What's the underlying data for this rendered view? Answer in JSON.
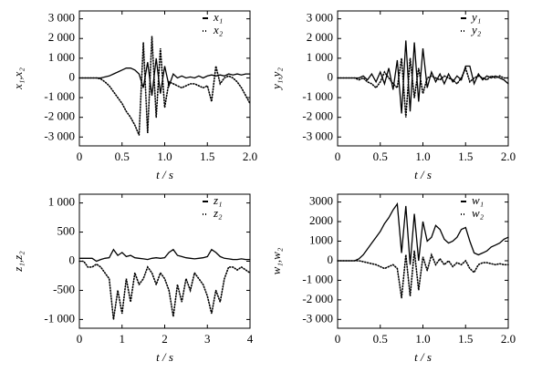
{
  "chart_data": [
    {
      "type": "line",
      "x_label": "t / s",
      "y_label": "x₁,x₂",
      "x": [
        0,
        0.05,
        0.1,
        0.15,
        0.2,
        0.25,
        0.3,
        0.35,
        0.4,
        0.45,
        0.5,
        0.55,
        0.6,
        0.65,
        0.7,
        0.75,
        0.8,
        0.85,
        0.9,
        0.95,
        1.0,
        1.05,
        1.1,
        1.15,
        1.2,
        1.25,
        1.3,
        1.35,
        1.4,
        1.45,
        1.5,
        1.55,
        1.6,
        1.65,
        1.7,
        1.75,
        1.8,
        1.85,
        1.9,
        1.95,
        2.0
      ],
      "series": [
        {
          "name": "x₁",
          "color": "#000000",
          "style": "solid",
          "values": [
            0,
            0,
            0,
            0,
            0,
            0,
            50,
            100,
            200,
            300,
            400,
            500,
            500,
            400,
            200,
            -500,
            800,
            -900,
            1000,
            -800,
            600,
            -400,
            200,
            0,
            100,
            0,
            50,
            0,
            100,
            0,
            100,
            150,
            100,
            150,
            100,
            200,
            150,
            200,
            150,
            200,
            200
          ]
        },
        {
          "name": "x₂",
          "color": "#000000",
          "style": "dotted",
          "values": [
            0,
            0,
            0,
            0,
            0,
            -50,
            -200,
            -400,
            -700,
            -1000,
            -1300,
            -1700,
            -2000,
            -2400,
            -2900,
            1800,
            -2800,
            2100,
            -2000,
            1500,
            -1500,
            -200,
            -300,
            -400,
            -500,
            -400,
            -300,
            -300,
            -400,
            -500,
            -400,
            -1200,
            600,
            -300,
            0,
            100,
            0,
            -200,
            -500,
            -900,
            -1300
          ]
        }
      ],
      "xlim": [
        0,
        2
      ],
      "xticks": [
        0,
        0.5,
        {
          "value": 1,
          "label": "1.0"
        },
        1.5,
        {
          "value": 2,
          "label": "2.0"
        }
      ],
      "ylim": [
        -3450,
        3400
      ],
      "yticks": [
        {
          "value": 3000,
          "label": "3 000"
        },
        {
          "value": 2000,
          "label": "2 000"
        },
        {
          "value": 1000,
          "label": "1 000"
        },
        0,
        {
          "value": -1000,
          "label": "-1 000"
        },
        {
          "value": -2000,
          "label": "-2 000"
        },
        {
          "value": -3000,
          "label": "-3 000"
        }
      ]
    },
    {
      "type": "line",
      "x_label": "t / s",
      "y_label": "y₁,y₂",
      "x": [
        0,
        0.05,
        0.1,
        0.15,
        0.2,
        0.25,
        0.3,
        0.35,
        0.4,
        0.45,
        0.5,
        0.55,
        0.6,
        0.65,
        0.7,
        0.75,
        0.8,
        0.85,
        0.9,
        0.95,
        1.0,
        1.05,
        1.1,
        1.15,
        1.2,
        1.25,
        1.3,
        1.35,
        1.4,
        1.45,
        1.5,
        1.55,
        1.6,
        1.65,
        1.7,
        1.75,
        1.8,
        1.85,
        1.9,
        1.95,
        2.0
      ],
      "series": [
        {
          "name": "y₁",
          "color": "#000000",
          "style": "solid",
          "values": [
            0,
            0,
            0,
            0,
            0,
            0,
            100,
            -100,
            200,
            -200,
            300,
            -300,
            500,
            -600,
            900,
            -1800,
            1900,
            -1700,
            1800,
            -1200,
            1500,
            -500,
            300,
            -200,
            200,
            -300,
            200,
            -200,
            100,
            -100,
            600,
            600,
            -300,
            200,
            -100,
            100,
            0,
            100,
            0,
            -100,
            -300
          ]
        },
        {
          "name": "y₂",
          "color": "#000000",
          "style": "dotted",
          "values": [
            0,
            0,
            0,
            0,
            0,
            -100,
            0,
            -200,
            -300,
            -500,
            -200,
            300,
            0,
            -300,
            -500,
            1000,
            -2000,
            1000,
            -1000,
            500,
            -800,
            0,
            100,
            0,
            -100,
            100,
            0,
            -100,
            -300,
            0,
            500,
            -200,
            0,
            100,
            0,
            -100,
            100,
            0,
            100,
            0,
            0
          ]
        }
      ],
      "xlim": [
        0,
        2
      ],
      "xticks": [
        0,
        0.5,
        {
          "value": 1,
          "label": "1.0"
        },
        1.5,
        {
          "value": 2,
          "label": "2.0"
        }
      ],
      "ylim": [
        -3450,
        3400
      ],
      "yticks": [
        {
          "value": 3000,
          "label": "3 000"
        },
        {
          "value": 2000,
          "label": "2 000"
        },
        {
          "value": 1000,
          "label": "1 000"
        },
        0,
        {
          "value": -1000,
          "label": "-1 000"
        },
        {
          "value": -2000,
          "label": "-2 000"
        },
        {
          "value": -3000,
          "label": "-3 000"
        }
      ]
    },
    {
      "type": "line",
      "x_label": "t / s",
      "y_label": "z₁,z₂",
      "x": [
        0,
        0.1,
        0.2,
        0.3,
        0.4,
        0.5,
        0.6,
        0.7,
        0.8,
        0.9,
        1,
        1.1,
        1.2,
        1.3,
        1.4,
        1.5,
        1.6,
        1.7,
        1.8,
        1.9,
        2,
        2.1,
        2.2,
        2.3,
        2.4,
        2.5,
        2.6,
        2.7,
        2.8,
        2.9,
        3,
        3.1,
        3.2,
        3.3,
        3.4,
        3.5,
        3.6,
        3.7,
        3.8,
        3.9,
        4
      ],
      "series": [
        {
          "name": "z₁",
          "color": "#000000",
          "style": "solid",
          "values": [
            50,
            50,
            50,
            50,
            0,
            30,
            50,
            60,
            200,
            100,
            150,
            80,
            100,
            60,
            50,
            40,
            30,
            50,
            60,
            50,
            60,
            150,
            200,
            100,
            80,
            60,
            50,
            40,
            50,
            60,
            80,
            200,
            150,
            80,
            50,
            40,
            30,
            30,
            40,
            30,
            30
          ]
        },
        {
          "name": "z₂",
          "color": "#000000",
          "style": "dotted",
          "values": [
            0,
            0,
            -100,
            -100,
            -50,
            -100,
            -200,
            -300,
            -1000,
            -500,
            -900,
            -300,
            -700,
            -200,
            -400,
            -300,
            -100,
            -200,
            -400,
            -200,
            -300,
            -500,
            -950,
            -400,
            -700,
            -300,
            -500,
            -200,
            -300,
            -400,
            -600,
            -900,
            -500,
            -700,
            -300,
            -100,
            -100,
            -150,
            -100,
            -150,
            -200
          ]
        }
      ],
      "xlim": [
        0,
        4
      ],
      "xticks": [
        0,
        1,
        2,
        3,
        4
      ],
      "ylim": [
        -1150,
        1150
      ],
      "yticks": [
        {
          "value": 1000,
          "label": "1 000"
        },
        500,
        0,
        -500,
        {
          "value": -1000,
          "label": "-1 000"
        }
      ]
    },
    {
      "type": "line",
      "x_label": "t / s",
      "y_label": "w₁,w₂",
      "x": [
        0,
        0.05,
        0.1,
        0.15,
        0.2,
        0.25,
        0.3,
        0.35,
        0.4,
        0.45,
        0.5,
        0.55,
        0.6,
        0.65,
        0.7,
        0.75,
        0.8,
        0.85,
        0.9,
        0.95,
        1.0,
        1.05,
        1.1,
        1.15,
        1.2,
        1.25,
        1.3,
        1.35,
        1.4,
        1.45,
        1.5,
        1.55,
        1.6,
        1.65,
        1.7,
        1.75,
        1.8,
        1.85,
        1.9,
        1.95,
        2.0
      ],
      "series": [
        {
          "name": "w₁",
          "color": "#000000",
          "style": "solid",
          "values": [
            0,
            0,
            0,
            0,
            0,
            100,
            300,
            600,
            900,
            1200,
            1500,
            1900,
            2200,
            2600,
            2900,
            400,
            2800,
            -200,
            2400,
            0,
            2000,
            1000,
            1200,
            1800,
            1600,
            1100,
            900,
            1000,
            1200,
            1600,
            1700,
            1000,
            400,
            300,
            400,
            500,
            700,
            800,
            900,
            1100,
            1200
          ]
        },
        {
          "name": "w₂",
          "color": "#000000",
          "style": "dotted",
          "values": [
            0,
            0,
            0,
            0,
            0,
            0,
            -50,
            -100,
            -150,
            -200,
            -300,
            -400,
            -300,
            -200,
            -400,
            -1900,
            300,
            -1800,
            500,
            -1500,
            200,
            -500,
            300,
            -200,
            100,
            -200,
            0,
            -300,
            -100,
            -200,
            0,
            -400,
            -600,
            -200,
            -100,
            -100,
            -150,
            -200,
            -150,
            -200,
            -200
          ]
        }
      ],
      "xlim": [
        0,
        2
      ],
      "xticks": [
        0,
        0.5,
        {
          "value": 1,
          "label": "1.0"
        },
        1.5,
        {
          "value": 2,
          "label": "2.0"
        }
      ],
      "ylim": [
        -3450,
        3400
      ],
      "yticks": [
        3000,
        2000,
        1000,
        0,
        {
          "value": -1000,
          "label": "-1 000"
        },
        {
          "value": -2000,
          "label": "-2 000"
        },
        {
          "value": -3000,
          "label": "-3 000"
        }
      ]
    }
  ]
}
